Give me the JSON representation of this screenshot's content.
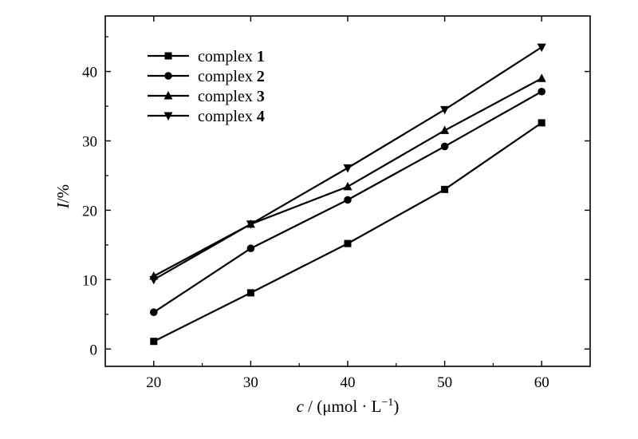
{
  "chart_data": {
    "type": "line",
    "x": [
      20,
      30,
      40,
      50,
      60
    ],
    "series": [
      {
        "name": "complex",
        "num": "1",
        "marker": "square",
        "values": [
          1.1,
          8.1,
          15.2,
          23.0,
          32.6
        ]
      },
      {
        "name": "complex",
        "num": "2",
        "marker": "circle",
        "values": [
          5.3,
          14.5,
          21.5,
          29.2,
          37.1
        ]
      },
      {
        "name": "complex",
        "num": "3",
        "marker": "triangle-up",
        "values": [
          10.5,
          18.0,
          23.4,
          31.5,
          39.0
        ]
      },
      {
        "name": "complex",
        "num": "4",
        "marker": "triangle-down",
        "values": [
          10.0,
          18.0,
          26.1,
          34.5,
          43.5
        ]
      }
    ],
    "xlim": [
      15,
      65
    ],
    "ylim": [
      -2.5,
      48
    ],
    "xticks": [
      20,
      30,
      40,
      50,
      60
    ],
    "yticks": [
      0,
      10,
      20,
      30,
      40
    ],
    "xlabel": {
      "italic": "c",
      "rest": " / (μmol · L",
      "sup": "−1",
      "close": ")"
    },
    "ylabel": {
      "italic": "I",
      "rest": "/%"
    },
    "legend_position": "top-left",
    "grid": false,
    "line_color": "#000000"
  }
}
